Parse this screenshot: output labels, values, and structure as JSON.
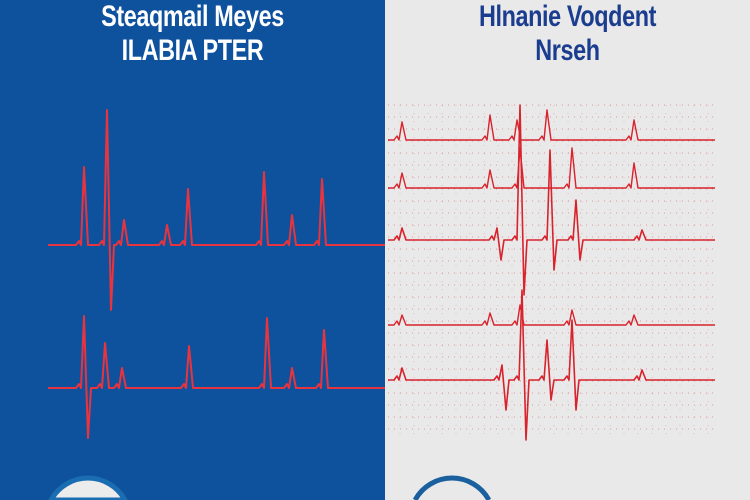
{
  "left_panel": {
    "title_line1": "Steaqmail Meyes",
    "title_line2": "ILABIA PTER",
    "background": "#0e519c",
    "trace_color": "#e8343f"
  },
  "right_panel": {
    "title_line1": "Hlnanie Voqdent",
    "title_line2": "Nrseh",
    "background": "#e9e9e9",
    "trace_color": "#d8222c",
    "title_color": "#1b3d8f"
  }
}
